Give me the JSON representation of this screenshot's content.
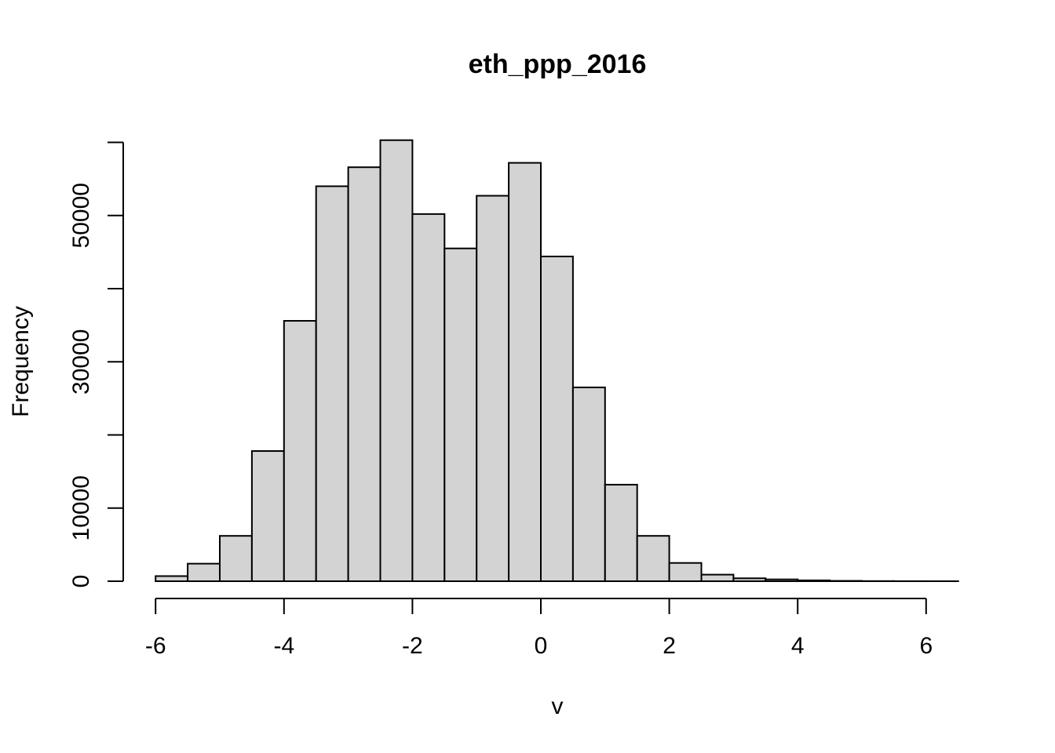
{
  "chart_data": {
    "type": "bar",
    "title": "eth_ppp_2016",
    "xlabel": "v",
    "ylabel": "Frequency",
    "bin_width": 0.5,
    "bins": [
      {
        "x0": -6.0,
        "x1": -5.5,
        "count": 700
      },
      {
        "x0": -5.5,
        "x1": -5.0,
        "count": 2400
      },
      {
        "x0": -5.0,
        "x1": -4.5,
        "count": 6200
      },
      {
        "x0": -4.5,
        "x1": -4.0,
        "count": 17800
      },
      {
        "x0": -4.0,
        "x1": -3.5,
        "count": 35600
      },
      {
        "x0": -3.5,
        "x1": -3.0,
        "count": 54000
      },
      {
        "x0": -3.0,
        "x1": -2.5,
        "count": 56600
      },
      {
        "x0": -2.5,
        "x1": -2.0,
        "count": 60300
      },
      {
        "x0": -2.0,
        "x1": -1.5,
        "count": 50200
      },
      {
        "x0": -1.5,
        "x1": -1.0,
        "count": 45500
      },
      {
        "x0": -1.0,
        "x1": -0.5,
        "count": 52700
      },
      {
        "x0": -0.5,
        "x1": 0.0,
        "count": 57200
      },
      {
        "x0": 0.0,
        "x1": 0.5,
        "count": 44400
      },
      {
        "x0": 0.5,
        "x1": 1.0,
        "count": 26500
      },
      {
        "x0": 1.0,
        "x1": 1.5,
        "count": 13200
      },
      {
        "x0": 1.5,
        "x1": 2.0,
        "count": 6200
      },
      {
        "x0": 2.0,
        "x1": 2.5,
        "count": 2500
      },
      {
        "x0": 2.5,
        "x1": 3.0,
        "count": 900
      },
      {
        "x0": 3.0,
        "x1": 3.5,
        "count": 400
      },
      {
        "x0": 3.5,
        "x1": 4.0,
        "count": 250
      },
      {
        "x0": 4.0,
        "x1": 4.5,
        "count": 120
      },
      {
        "x0": 4.5,
        "x1": 5.0,
        "count": 50
      },
      {
        "x0": 5.0,
        "x1": 5.5,
        "count": 20
      },
      {
        "x0": 5.5,
        "x1": 6.0,
        "count": 10
      },
      {
        "x0": 6.0,
        "x1": 6.5,
        "count": 5
      }
    ],
    "xticks": [
      -6,
      -4,
      -2,
      0,
      2,
      4,
      6
    ],
    "xtick_labels": [
      "-6",
      "-4",
      "-2",
      "0",
      "2",
      "4",
      "6"
    ],
    "yticks": [
      0,
      10000,
      20000,
      30000,
      40000,
      50000,
      60000
    ],
    "ytick_labels": [
      "0",
      "10000",
      "",
      "30000",
      "",
      "50000",
      ""
    ],
    "xlim": [
      -6,
      6.5
    ],
    "ylim": [
      0,
      60000
    ],
    "grid": false,
    "bar_color": "#d3d3d3",
    "edge_color": "#000000"
  }
}
